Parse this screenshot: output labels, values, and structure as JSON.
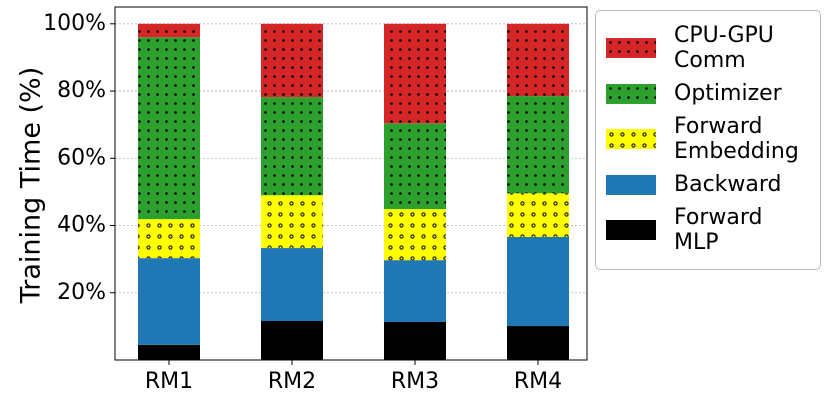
{
  "chart_data": {
    "type": "stacked_bar",
    "y_label": "Training Time (%)",
    "categories": [
      "RM1",
      "RM2",
      "RM3",
      "RM4"
    ],
    "series": [
      {
        "name": "Forward MLP",
        "color": "#000000",
        "hatch": null,
        "values": [
          4.5,
          11.6,
          11.3,
          10.1
        ]
      },
      {
        "name": "Backward",
        "color": "#1f77b4",
        "hatch": null,
        "values": [
          25.8,
          21.7,
          18.4,
          26.5
        ]
      },
      {
        "name": "Forward Embedding",
        "color": "#ffff00",
        "hatch": "o",
        "values": [
          11.6,
          15.7,
          15.2,
          13.0
        ]
      },
      {
        "name": "Optimizer",
        "color": "#2ca02c",
        "hatch": ".",
        "values": [
          54.1,
          29.2,
          25.5,
          28.9
        ]
      },
      {
        "name": "CPU-GPU Comm",
        "color": "#d62728",
        "hatch": ".",
        "values": [
          4.0,
          21.8,
          29.6,
          21.5
        ]
      }
    ],
    "ylim": [
      0,
      105
    ],
    "yticks": [
      {
        "value": 20,
        "label": "20%"
      },
      {
        "value": 40,
        "label": "40%"
      },
      {
        "value": 60,
        "label": "60%"
      },
      {
        "value": 80,
        "label": "80%"
      },
      {
        "value": 100,
        "label": "100%"
      }
    ],
    "grid": true,
    "legend": "right"
  }
}
